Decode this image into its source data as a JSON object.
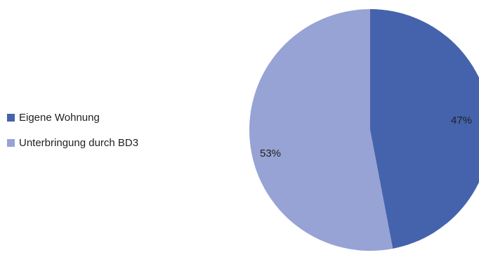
{
  "chart_data": {
    "type": "pie",
    "title": "",
    "categories": [
      "Eigene Wohnung",
      "Unterbringung durch BD3"
    ],
    "values": [
      47,
      53
    ],
    "labels": [
      "47%",
      "53%"
    ],
    "colors": [
      "#4563ac",
      "#97a3d4"
    ],
    "start_angle": "12 o'clock",
    "direction": "clockwise",
    "legend_position": "left"
  }
}
